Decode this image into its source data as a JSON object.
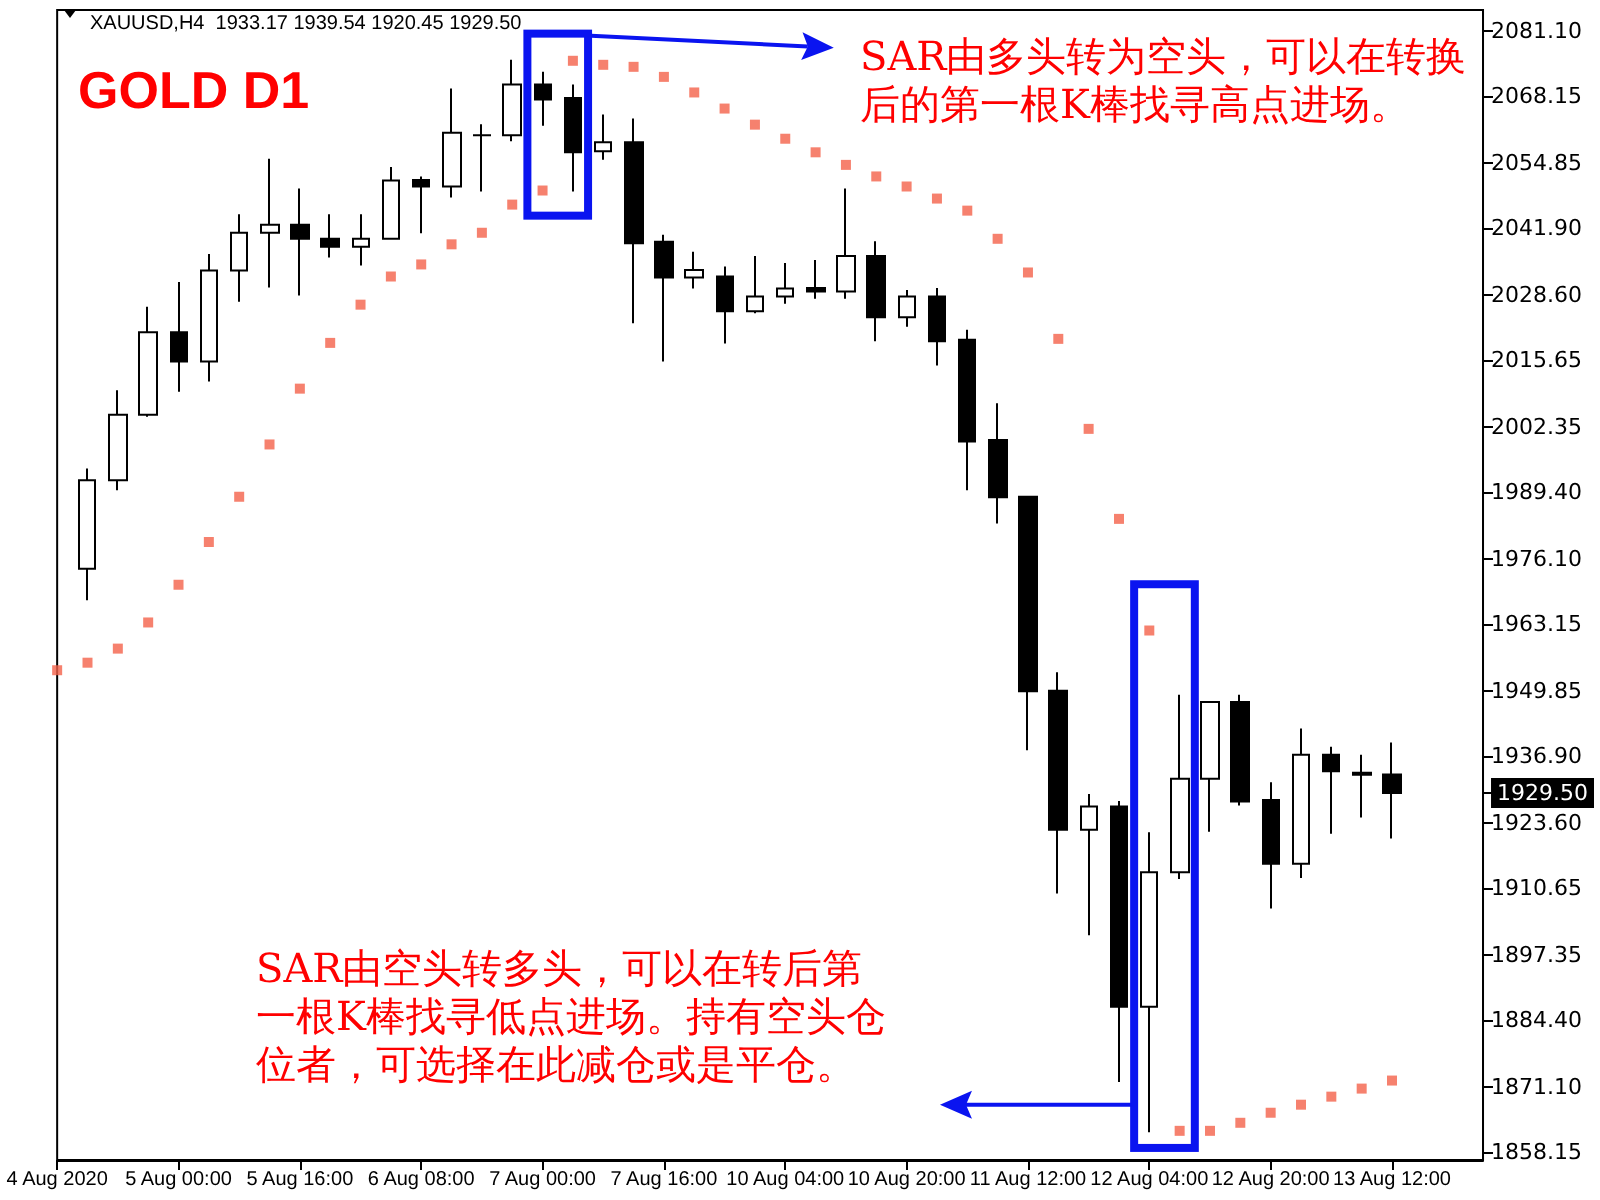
{
  "chart_data": {
    "type": "candlestick",
    "title": "GOLD D1",
    "subtitle": "XAUUSD,H4  1933.17 1939.54 1920.45 1929.50",
    "categories": [
      "4 Aug 2020",
      null,
      null,
      null,
      "5 Aug 00:00",
      null,
      null,
      null,
      "5 Aug 16:00",
      null,
      null,
      null,
      "6 Aug 08:00",
      null,
      null,
      null,
      "7 Aug 00:00",
      null,
      null,
      null,
      "7 Aug 16:00",
      null,
      null,
      null,
      "10 Aug 04:00",
      null,
      null,
      null,
      "10 Aug 20:00",
      null,
      null,
      null,
      "11 Aug 12:00",
      null,
      null,
      null,
      "12 Aug 04:00",
      null,
      null,
      null,
      "12 Aug 20:00",
      null,
      null,
      null,
      "13 Aug 12:00",
      null,
      null,
      null
    ],
    "ohlc": [
      null,
      [
        1974.1,
        1994.0,
        1967.8,
        1991.7
      ],
      [
        1991.7,
        2009.6,
        1989.7,
        2004.7
      ],
      [
        2004.7,
        2026.2,
        2004.3,
        2021.1
      ],
      [
        2021.1,
        2031.1,
        2009.3,
        2015.3
      ],
      [
        2015.3,
        2036.7,
        2011.3,
        2033.4
      ],
      [
        2033.4,
        2044.6,
        2027.2,
        2040.9
      ],
      [
        2040.9,
        2055.6,
        2030.0,
        2042.5
      ],
      [
        2042.5,
        2049.7,
        2028.4,
        2039.7
      ],
      [
        2039.7,
        2044.6,
        2036.0,
        2038.1
      ],
      [
        2038.1,
        2044.6,
        2034.4,
        2039.7
      ],
      [
        2039.7,
        2054.0,
        2039.7,
        2051.3
      ],
      [
        2051.4,
        2052.1,
        2040.8,
        2050.1
      ],
      [
        2050.1,
        2069.6,
        2047.9,
        2060.8
      ],
      [
        2060.3,
        2062.5,
        2049.1,
        2060.3
      ],
      [
        2060.3,
        2075.3,
        2059.1,
        2070.4
      ],
      [
        2070.4,
        2072.9,
        2062.2,
        2067.4
      ],
      [
        2067.7,
        2070.4,
        2049.1,
        2056.9
      ],
      [
        2057.1,
        2064.4,
        2055.4,
        2058.9
      ],
      [
        2058.9,
        2063.6,
        2022.9,
        2038.8
      ],
      [
        2039.1,
        2040.5,
        2015.3,
        2032.0
      ],
      [
        2032.0,
        2037.1,
        2029.8,
        2033.5
      ],
      [
        2032.2,
        2034.2,
        2018.9,
        2025.3
      ],
      [
        2025.3,
        2036.3,
        2024.9,
        2028.2
      ],
      [
        2028.2,
        2034.9,
        2026.8,
        2029.8
      ],
      [
        2029.9,
        2035.5,
        2027.8,
        2029.2
      ],
      [
        2029.2,
        2049.7,
        2027.8,
        2036.3
      ],
      [
        2036.3,
        2039.2,
        2019.3,
        2024.1
      ],
      [
        2024.1,
        2029.5,
        2022.2,
        2028.2
      ],
      [
        2028.2,
        2029.9,
        2014.5,
        2019.3
      ],
      [
        2019.6,
        2021.6,
        1989.7,
        1999.4
      ],
      [
        1999.7,
        2007.0,
        1983.1,
        1988.3
      ],
      [
        1988.4,
        1988.4,
        1938.0,
        1949.7
      ],
      [
        1949.8,
        1953.5,
        1909.5,
        1922.2
      ],
      [
        1922.2,
        1929.3,
        1901.2,
        1926.8
      ],
      [
        1926.8,
        1927.9,
        1872.0,
        1887.0
      ],
      [
        1887.0,
        1921.7,
        1862.0,
        1913.7
      ],
      [
        1913.7,
        1949.0,
        1912.4,
        1932.3
      ],
      [
        1932.3,
        1947.6,
        1921.8,
        1947.6
      ],
      [
        1947.6,
        1949.0,
        1927.0,
        1927.8
      ],
      [
        1928.1,
        1931.6,
        1906.5,
        1915.4
      ],
      [
        1915.4,
        1942.3,
        1912.6,
        1937.1
      ],
      [
        1937.1,
        1938.7,
        1921.4,
        1933.8
      ],
      [
        1933.5,
        1937.1,
        1924.6,
        1933.1
      ],
      [
        1933.17,
        1939.54,
        1920.45,
        1929.5
      ],
      null,
      null,
      null
    ],
    "series": [
      {
        "type": "scatter",
        "color": "#f4614a",
        "marker": "square",
        "values": [
          1953.9,
          1955.4,
          1958.2,
          1963.4,
          1970.9,
          1979.4,
          1988.4,
          1998.8,
          2009.9,
          2019.0,
          2026.6,
          2032.2,
          2034.6,
          2038.6,
          2040.9,
          2046.5,
          2049.3,
          2075.1,
          2074.3,
          2073.9,
          2071.9,
          2068.8,
          2065.6,
          2062.4,
          2059.6,
          2056.9,
          2054.4,
          2052.1,
          2050.1,
          2047.7,
          2045.3,
          2039.7,
          2033.0,
          2019.8,
          2001.9,
          1984.0,
          1961.8,
          1862.3,
          1862.3,
          1863.9,
          1865.9,
          1867.5,
          1869.1,
          1870.7,
          1872.3,
          null,
          null,
          null
        ]
      }
    ],
    "ylim": [
      1856.5,
      2085.2
    ],
    "yticks": [
      {
        "value": 2081.1,
        "label": "2081.10"
      },
      {
        "value": 2068.15,
        "label": "2068.15"
      },
      {
        "value": 2054.85,
        "label": "2054.85"
      },
      {
        "value": 2041.9,
        "label": "2041.90"
      },
      {
        "value": 2028.6,
        "label": "2028.60"
      },
      {
        "value": 2015.65,
        "label": "2015.65"
      },
      {
        "value": 2002.35,
        "label": "2002.35"
      },
      {
        "value": 1989.4,
        "label": "1989.40"
      },
      {
        "value": 1976.1,
        "label": "1976.10"
      },
      {
        "value": 1963.15,
        "label": "1963.15"
      },
      {
        "value": 1949.85,
        "label": "1949.85"
      },
      {
        "value": 1936.9,
        "label": "1936.90"
      },
      {
        "value": 1929.5,
        "label": "1929.50"
      },
      {
        "value": 1923.6,
        "label": "1923.60"
      },
      {
        "value": 1910.65,
        "label": "1910.65"
      },
      {
        "value": 1897.35,
        "label": "1897.35"
      },
      {
        "value": 1884.4,
        "label": "1884.40"
      },
      {
        "value": 1871.1,
        "label": "1871.10"
      },
      {
        "value": 1858.15,
        "label": "1858.15"
      }
    ],
    "grid": false,
    "annotations": [
      "SAR由多头转为空头，可以在转换后的第一根K棒找寻高点进场。",
      "SAR由空头转多头，可以在转后第一根K棒找寻低点进场。持有空头仓位者，可选择在此减仓或是平仓。"
    ]
  }
}
